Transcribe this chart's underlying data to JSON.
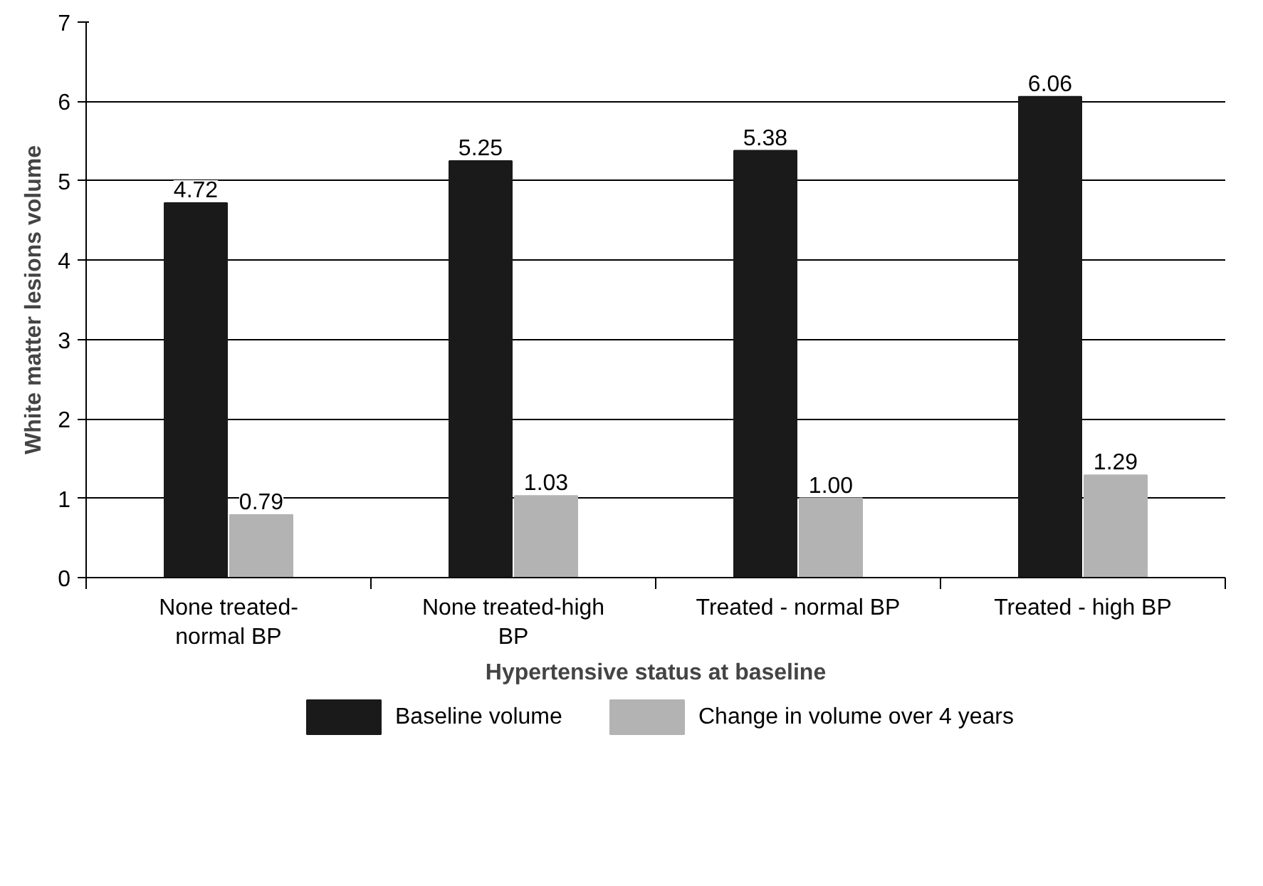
{
  "chart_data": {
    "type": "bar",
    "xlabel": "Hypertensive status at baseline",
    "ylabel": "White matter lesions volume",
    "categories": [
      "None treated-\nnormal BP",
      "None treated-high\nBP",
      "Treated - normal BP",
      "Treated - high BP"
    ],
    "series": [
      {
        "name": "Baseline volume",
        "color": "#1a1a1a",
        "values": [
          4.72,
          5.25,
          5.38,
          6.06
        ],
        "value_labels": [
          "4.72",
          "5.25",
          "5.38",
          "6.06"
        ]
      },
      {
        "name": "Change in volume over 4 years",
        "color": "#b3b3b3",
        "values": [
          0.79,
          1.03,
          1.0,
          1.29
        ],
        "value_labels": [
          "0.79",
          "1.03",
          "1.00",
          "1.29"
        ]
      }
    ],
    "ylim": [
      0,
      7
    ],
    "yticks": [
      0,
      1,
      2,
      3,
      4,
      5,
      6,
      7
    ],
    "grid": "y",
    "legend": "bottom"
  }
}
